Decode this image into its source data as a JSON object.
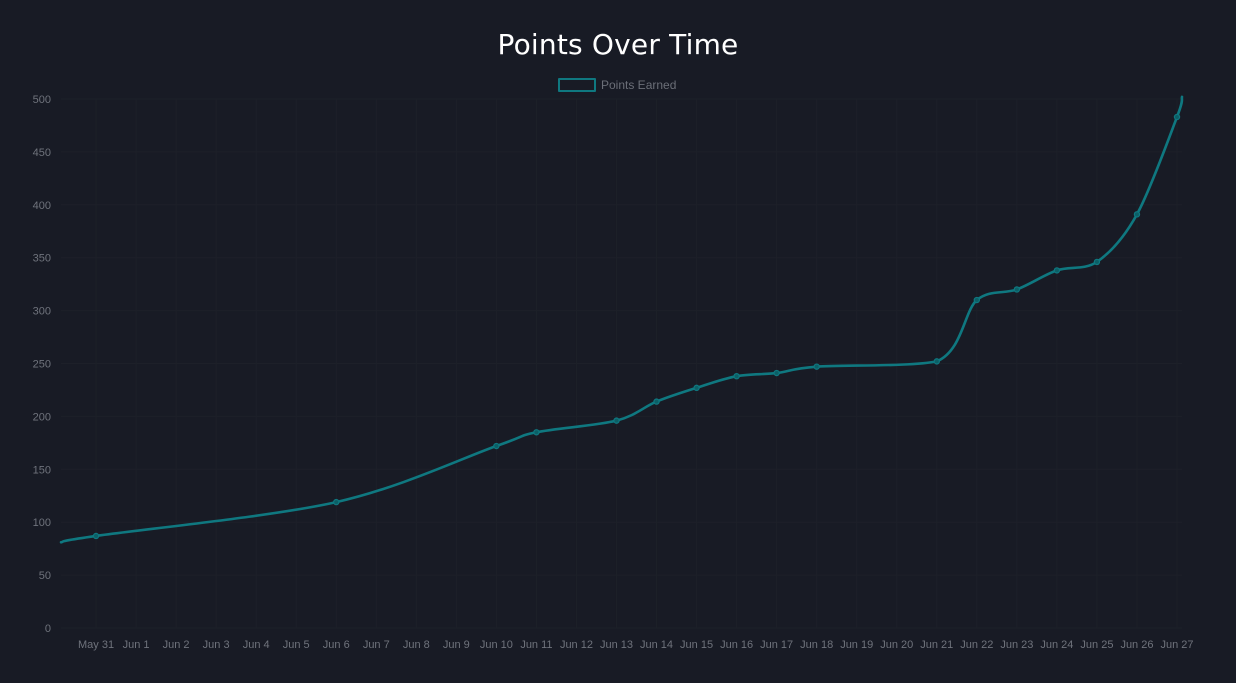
{
  "chart_data": {
    "type": "line",
    "title": "Points Over Time",
    "xlabel": "",
    "ylabel": "",
    "ylim": [
      0,
      500
    ],
    "yticks": [
      0,
      50,
      100,
      150,
      200,
      250,
      300,
      350,
      400,
      450,
      500
    ],
    "xtick_labels": [
      "May 31",
      "Jun 1",
      "Jun 2",
      "Jun 3",
      "Jun 4",
      "Jun 5",
      "Jun 6",
      "Jun 7",
      "Jun 8",
      "Jun 9",
      "Jun 10",
      "Jun 11",
      "Jun 12",
      "Jun 13",
      "Jun 14",
      "Jun 15",
      "Jun 16",
      "Jun 17",
      "Jun 18",
      "Jun 19",
      "Jun 20",
      "Jun 21",
      "Jun 22",
      "Jun 23",
      "Jun 24",
      "Jun 25",
      "Jun 26",
      "Jun 27"
    ],
    "xlim": [
      "May 30 03:00",
      "Jun 27 03:00"
    ],
    "grid": true,
    "legend": "top",
    "series": [
      {
        "name": "Points Earned",
        "color": "#0f7880",
        "points": [
          {
            "x": "May 30 03:00",
            "y": 81
          },
          {
            "x": "May 31",
            "y": 87
          },
          {
            "x": "Jun 6",
            "y": 119
          },
          {
            "x": "Jun 10",
            "y": 172
          },
          {
            "x": "Jun 11",
            "y": 185
          },
          {
            "x": "Jun 13",
            "y": 196
          },
          {
            "x": "Jun 14",
            "y": 214
          },
          {
            "x": "Jun 15",
            "y": 227
          },
          {
            "x": "Jun 16",
            "y": 238
          },
          {
            "x": "Jun 17",
            "y": 241
          },
          {
            "x": "Jun 18",
            "y": 247
          },
          {
            "x": "Jun 21",
            "y": 252
          },
          {
            "x": "Jun 22",
            "y": 310
          },
          {
            "x": "Jun 23",
            "y": 320
          },
          {
            "x": "Jun 24",
            "y": 338
          },
          {
            "x": "Jun 25",
            "y": 346
          },
          {
            "x": "Jun 26",
            "y": 391
          },
          {
            "x": "Jun 27",
            "y": 483
          },
          {
            "x": "Jun 27 03:00",
            "y": 502
          }
        ]
      }
    ]
  }
}
